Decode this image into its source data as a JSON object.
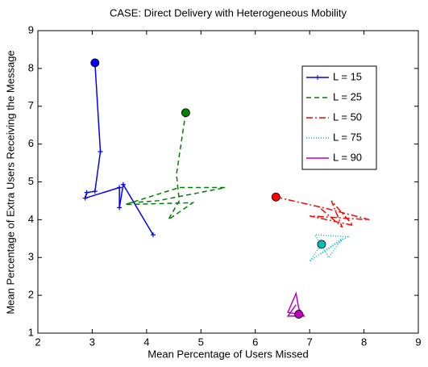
{
  "chart_data": {
    "type": "line",
    "title": "CASE: Direct Delivery with Heterogeneous Mobility",
    "x_label": "Mean Percentage of Users Missed",
    "y_label": "Mean Percentage of Extra Users Receiving the Message",
    "xlim": [
      2,
      9
    ],
    "xticks": [
      2,
      3,
      4,
      5,
      6,
      7,
      8,
      9
    ],
    "ylim": [
      1,
      9
    ],
    "yticks": [
      1,
      2,
      3,
      4,
      5,
      6,
      7,
      8,
      9
    ],
    "grid": false,
    "legend": "northeast",
    "series": [
      {
        "name": "L = 15",
        "color": "#0000ff",
        "linestyle": "solid",
        "marker": "plus",
        "start_marker": "circle",
        "x": [
          3.05,
          3.15,
          3.05,
          2.9,
          2.87,
          3.5,
          3.5,
          3.57,
          4.12
        ],
        "values": [
          8.15,
          5.8,
          4.75,
          4.72,
          4.57,
          4.85,
          4.32,
          4.93,
          3.6
        ]
      },
      {
        "name": "L = 25",
        "color": "#008000",
        "linestyle": "dashed",
        "marker": "none",
        "start_marker": "circle",
        "x": [
          4.72,
          4.55,
          4.6,
          4.4,
          4.85,
          3.6,
          4.6,
          5.45,
          4.2,
          3.7
        ],
        "values": [
          6.83,
          5.2,
          4.5,
          4.0,
          4.45,
          4.4,
          4.85,
          4.85,
          4.5,
          4.45
        ]
      },
      {
        "name": "L = 50",
        "color": "#ff0000",
        "linestyle": "dashdot",
        "marker": "none",
        "start_marker": "circle",
        "x": [
          6.38,
          7.3,
          8.1,
          7.0,
          7.8,
          7.4,
          7.6,
          7.2
        ],
        "values": [
          4.6,
          4.3,
          4.0,
          4.1,
          3.85,
          4.5,
          3.8,
          4.3
        ]
      },
      {
        "name": "L = 75",
        "color": "#00bfbf",
        "linestyle": "dotted",
        "marker": "none",
        "start_marker": "circle",
        "x": [
          7.22,
          7.0,
          7.6,
          7.35,
          7.1,
          7.7,
          7.2
        ],
        "values": [
          3.35,
          2.9,
          3.5,
          3.0,
          3.6,
          3.55,
          3.1
        ]
      },
      {
        "name": "L = 90",
        "color": "#bf00bf",
        "linestyle": "solid",
        "marker": "none",
        "start_marker": "circle",
        "x": [
          6.8,
          6.6,
          6.75,
          6.8,
          6.9,
          6.6,
          6.75
        ],
        "values": [
          1.5,
          1.55,
          2.05,
          1.65,
          1.45,
          1.45,
          1.75
        ]
      }
    ]
  }
}
